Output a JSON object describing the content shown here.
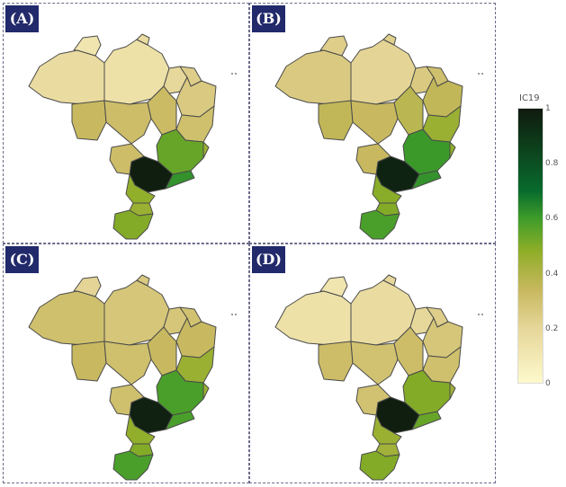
{
  "panels": [
    {
      "label": "(A)",
      "values": {
        "n1": 0.12,
        "n2": 0.08,
        "n3": 0.1,
        "n4": 0.12,
        "ne1": 0.14,
        "ne2": 0.18,
        "ne3": 0.2,
        "ne4": 0.25,
        "c1": 0.28,
        "c2": 0.26,
        "c3": 0.27,
        "mg": 0.5,
        "sp": 0.98,
        "rj": 0.6,
        "es": 0.4,
        "pr": 0.42,
        "sc": 0.4,
        "rs": 0.45
      }
    },
    {
      "label": "(B)",
      "values": {
        "n1": 0.2,
        "n2": 0.18,
        "n3": 0.15,
        "n4": 0.17,
        "ne1": 0.2,
        "ne2": 0.25,
        "ne3": 0.3,
        "ne4": 0.4,
        "c1": 0.3,
        "c2": 0.28,
        "c3": 0.32,
        "mg": 0.58,
        "sp": 0.95,
        "rj": 0.6,
        "es": 0.42,
        "pr": 0.44,
        "sc": 0.45,
        "rs": 0.55
      }
    },
    {
      "label": "(C)",
      "values": {
        "n1": 0.25,
        "n2": 0.15,
        "n3": 0.22,
        "n4": 0.2,
        "ne1": 0.22,
        "ne2": 0.24,
        "ne3": 0.28,
        "ne4": 0.4,
        "c1": 0.28,
        "c2": 0.25,
        "c3": 0.28,
        "mg": 0.55,
        "sp": 0.97,
        "rj": 0.55,
        "es": 0.4,
        "pr": 0.42,
        "sc": 0.45,
        "rs": 0.55
      }
    },
    {
      "label": "(D)",
      "values": {
        "n1": 0.1,
        "n2": 0.08,
        "n3": 0.12,
        "n4": 0.14,
        "ne1": 0.14,
        "ne2": 0.18,
        "ne3": 0.22,
        "ne4": 0.25,
        "c1": 0.26,
        "c2": 0.24,
        "c3": 0.26,
        "mg": 0.45,
        "sp": 0.98,
        "rj": 0.5,
        "es": 0.38,
        "pr": 0.4,
        "sc": 0.38,
        "rs": 0.45
      }
    }
  ],
  "colorbar": {
    "title": "IC19",
    "ticks": [
      "1",
      "0.8",
      "0.6",
      "0.4",
      "0.2",
      "0"
    ],
    "scale": [
      "#fdf9cc",
      "#e6d699",
      "#c7b85e",
      "#8fae28",
      "#3e9c2a",
      "#086b2d",
      "#0e3518",
      "#101a0f"
    ]
  }
}
